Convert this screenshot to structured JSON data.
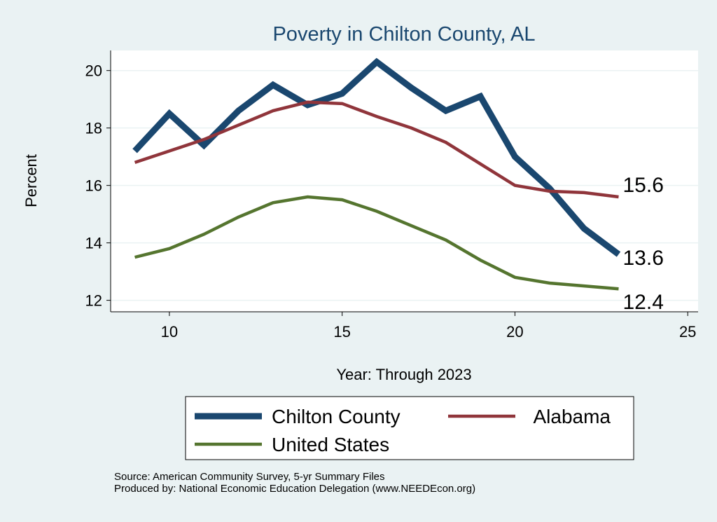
{
  "chart_data": {
    "type": "line",
    "title": "Poverty in Chilton County, AL",
    "xlabel": "Year: Through 2023",
    "ylabel": "Percent",
    "xlim": [
      8.3,
      25.3
    ],
    "ylim": [
      11.6,
      20.7
    ],
    "xticks": [
      10,
      15,
      20,
      25
    ],
    "yticks": [
      12,
      14,
      16,
      18,
      20
    ],
    "grid": true,
    "x": [
      9,
      10,
      11,
      12,
      13,
      14,
      15,
      16,
      17,
      18,
      19,
      20,
      21,
      22,
      23
    ],
    "series": [
      {
        "name": "Chilton County",
        "color": "#1a476f",
        "width": 9,
        "values": [
          17.2,
          18.5,
          17.4,
          18.6,
          19.5,
          18.8,
          19.2,
          20.3,
          19.4,
          18.6,
          19.1,
          17.0,
          15.9,
          14.5,
          13.6
        ],
        "end_label": "13.6"
      },
      {
        "name": "Alabama",
        "color": "#90353b",
        "width": 4.5,
        "values": [
          16.8,
          17.2,
          17.6,
          18.1,
          18.6,
          18.9,
          18.85,
          18.4,
          18.0,
          17.5,
          16.75,
          16.0,
          15.8,
          15.75,
          15.6
        ],
        "end_label": "15.6"
      },
      {
        "name": "United States",
        "color": "#55752f",
        "width": 4.5,
        "values": [
          13.5,
          13.8,
          14.3,
          14.9,
          15.4,
          15.6,
          15.5,
          15.1,
          14.6,
          14.1,
          13.4,
          12.8,
          12.6,
          12.5,
          12.4
        ],
        "end_label": "12.4"
      }
    ],
    "legend_placement": "bottom"
  },
  "notes": {
    "source": "Source: American Community Survey, 5-yr Summary Files",
    "produced": "Produced by: National Economic Education Delegation (www.NEEDEcon.org)"
  }
}
